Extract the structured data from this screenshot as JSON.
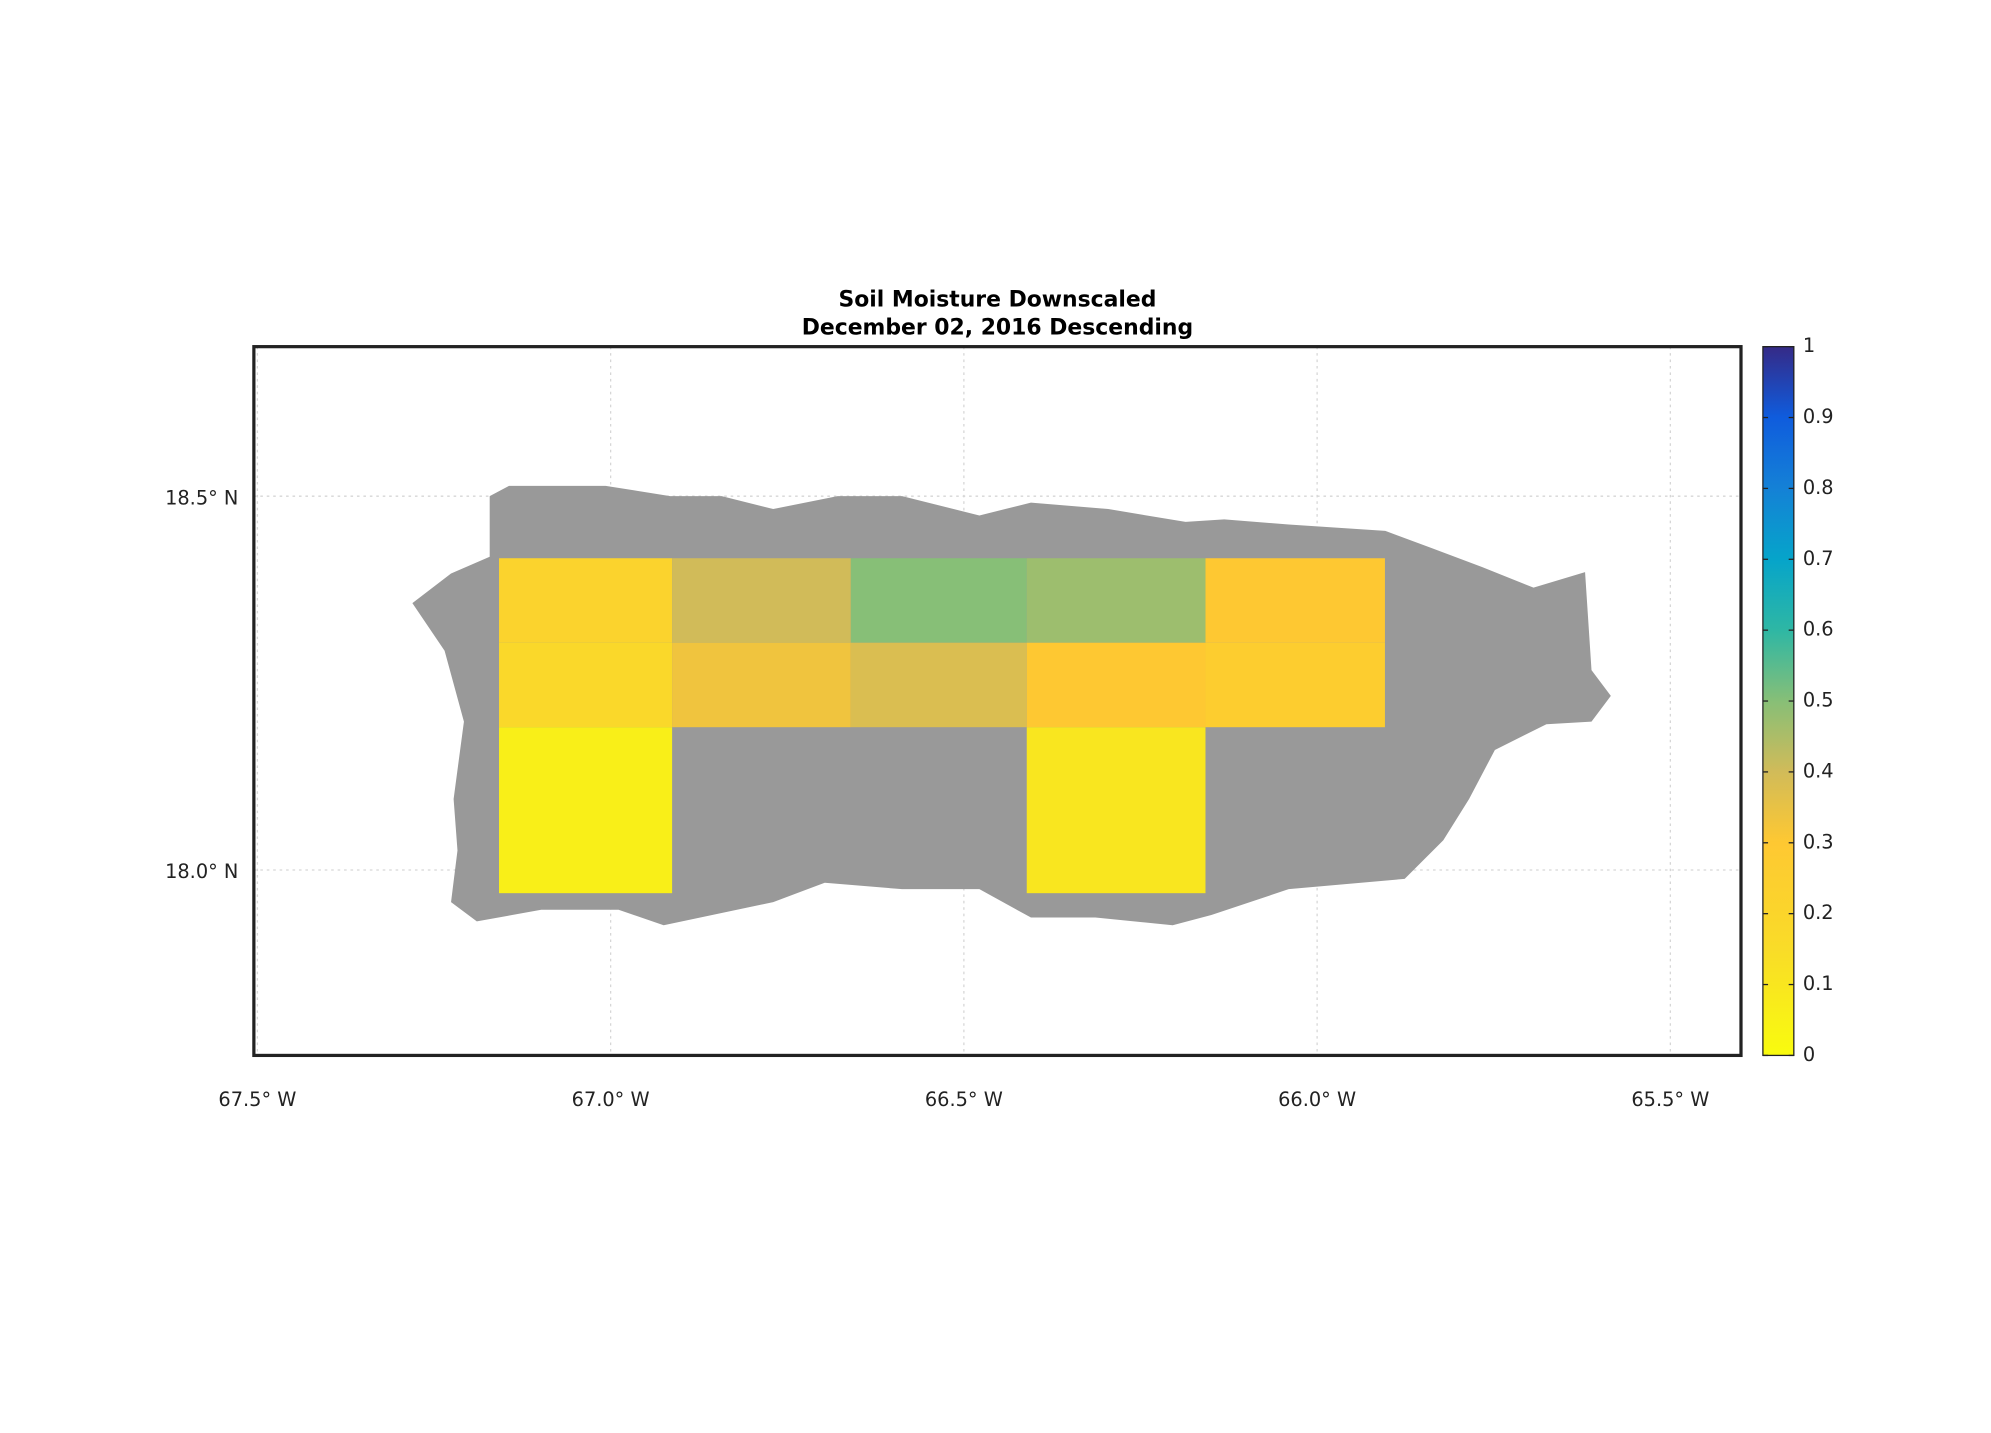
{
  "chart_data": {
    "type": "heatmap",
    "title": "Soil Moisture Downscaled",
    "subtitle": "December 02, 2016 Descending",
    "xlim": [
      -67.505,
      -65.4
    ],
    "ylim": [
      17.752,
      18.7
    ],
    "xticks": [
      {
        "value": -67.5,
        "label": "67.5° W"
      },
      {
        "value": -67.0,
        "label": "67.0° W"
      },
      {
        "value": -66.5,
        "label": "66.5° W"
      },
      {
        "value": -66.0,
        "label": "66.0° W"
      },
      {
        "value": -65.5,
        "label": "65.5° W"
      }
    ],
    "yticks": [
      {
        "value": 18.0,
        "label": "18.0° N"
      },
      {
        "value": 18.5,
        "label": "18.5° N"
      }
    ],
    "grid": true,
    "colormap": "parula",
    "colormap_reversed": true,
    "clim": [
      0,
      1
    ],
    "cticks": [
      0,
      0.1,
      0.2,
      0.3,
      0.4,
      0.5,
      0.6,
      0.7,
      0.8,
      0.9,
      1
    ],
    "tiles": [
      {
        "lon": [
          -67.158,
          -66.913
        ],
        "lat": [
          18.304,
          18.417
        ],
        "value": 0.22
      },
      {
        "lon": [
          -66.913,
          -66.66
        ],
        "lat": [
          18.304,
          18.417
        ],
        "value": 0.4
      },
      {
        "lon": [
          -66.66,
          -66.411
        ],
        "lat": [
          18.304,
          18.417
        ],
        "value": 0.5
      },
      {
        "lon": [
          -66.411,
          -66.158
        ],
        "lat": [
          18.304,
          18.417
        ],
        "value": 0.47
      },
      {
        "lon": [
          -66.158,
          -65.904
        ],
        "lat": [
          18.304,
          18.417
        ],
        "value": 0.3
      },
      {
        "lon": [
          -67.158,
          -66.913
        ],
        "lat": [
          18.191,
          18.304
        ],
        "value": 0.18
      },
      {
        "lon": [
          -66.913,
          -66.66
        ],
        "lat": [
          18.191,
          18.304
        ],
        "value": 0.33
      },
      {
        "lon": [
          -66.66,
          -66.411
        ],
        "lat": [
          18.191,
          18.304
        ],
        "value": 0.38
      },
      {
        "lon": [
          -66.411,
          -66.158
        ],
        "lat": [
          18.191,
          18.304
        ],
        "value": 0.3
      },
      {
        "lon": [
          -66.158,
          -65.904
        ],
        "lat": [
          18.191,
          18.304
        ],
        "value": 0.26
      },
      {
        "lon": [
          -67.158,
          -66.913
        ],
        "lat": [
          17.969,
          18.191
        ],
        "value": 0.06
      },
      {
        "lon": [
          -66.411,
          -66.158
        ],
        "lat": [
          17.969,
          18.191
        ],
        "value": 0.1
      }
    ]
  }
}
